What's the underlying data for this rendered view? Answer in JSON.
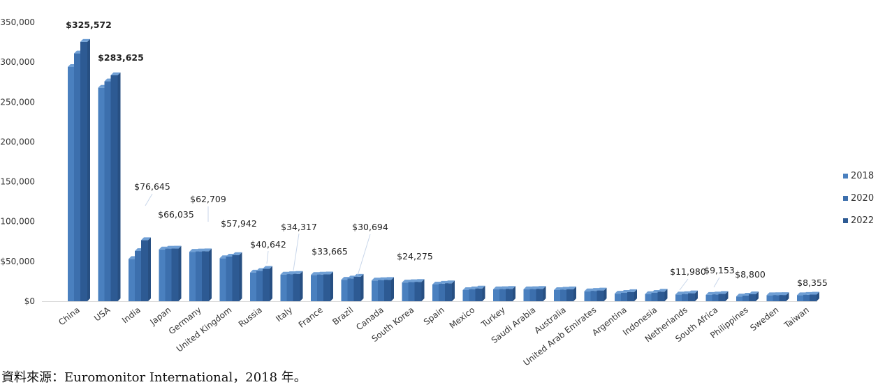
{
  "chart_data": {
    "type": "bar",
    "categories": [
      "China",
      "USA",
      "India",
      "Japan",
      "Germany",
      "United Kingdom",
      "Russia",
      "Italy",
      "France",
      "Brazil",
      "Canada",
      "South Korea",
      "Spain",
      "Mexico",
      "Turkey",
      "Saudi Arabia",
      "Australia",
      "United Arab Emirates",
      "Argentina",
      "Indonesia",
      "Netherlands",
      "South Africa",
      "Philippines",
      "Sweden",
      "Taiwan"
    ],
    "series": [
      {
        "name": "2018",
        "values": [
          294000,
          268000,
          53000,
          65000,
          62000,
          54000,
          36000,
          33500,
          33000,
          27000,
          26000,
          23500,
          21000,
          14000,
          15000,
          15000,
          14000,
          12500,
          9500,
          9000,
          8500,
          8000,
          6000,
          7500,
          7600
        ]
      },
      {
        "name": "2020",
        "values": [
          311000,
          276000,
          63000,
          66000,
          62500,
          56000,
          38000,
          34000,
          33500,
          28500,
          26500,
          24000,
          22000,
          15000,
          15200,
          15200,
          14500,
          13000,
          10500,
          10500,
          9000,
          8500,
          7000,
          7700,
          8000
        ]
      },
      {
        "name": "2022",
        "values": [
          325572,
          283625,
          76645,
          66035,
          62709,
          57942,
          40642,
          34317,
          33665,
          30694,
          26800,
          24275,
          22500,
          16000,
          15500,
          15500,
          15000,
          13500,
          11500,
          11980,
          10000,
          9153,
          8800,
          7800,
          8355
        ]
      }
    ],
    "data_labels": [
      {
        "category": "China",
        "text": "$325,572",
        "bold": true
      },
      {
        "category": "USA",
        "text": "$283,625",
        "bold": true
      },
      {
        "category": "India",
        "text": "$76,645"
      },
      {
        "category": "Japan",
        "text": "$66,035"
      },
      {
        "category": "Germany",
        "text": "$62,709"
      },
      {
        "category": "United Kingdom",
        "text": "$57,942"
      },
      {
        "category": "Russia",
        "text": "$40,642"
      },
      {
        "category": "Italy",
        "text": "$34,317"
      },
      {
        "category": "France",
        "text": "$33,665"
      },
      {
        "category": "Brazil",
        "text": "$30,694"
      },
      {
        "category": "South Korea",
        "text": "$24,275"
      },
      {
        "category": "Indonesia",
        "text": "$11,980"
      },
      {
        "category": "South Africa",
        "text": "$9,153"
      },
      {
        "category": "Philippines",
        "text": "$8,800"
      },
      {
        "category": "Taiwan",
        "text": "$8,355"
      }
    ],
    "y_ticks": [
      "$0",
      "$50,000",
      "$100,000",
      "$150,000",
      "$200,000",
      "$250,000",
      "$300,000",
      "$350,000"
    ],
    "ylim": [
      0,
      350000
    ],
    "grid": false,
    "legend_position": "right",
    "colors": {
      "2018": "#4a80bf",
      "2020": "#3c6fad",
      "2022": "#2d5a93",
      "top": "#6f9fd5",
      "leader": "#c8d6ea"
    }
  },
  "source_note": "資料來源：Euromonitor International，2018 年。"
}
